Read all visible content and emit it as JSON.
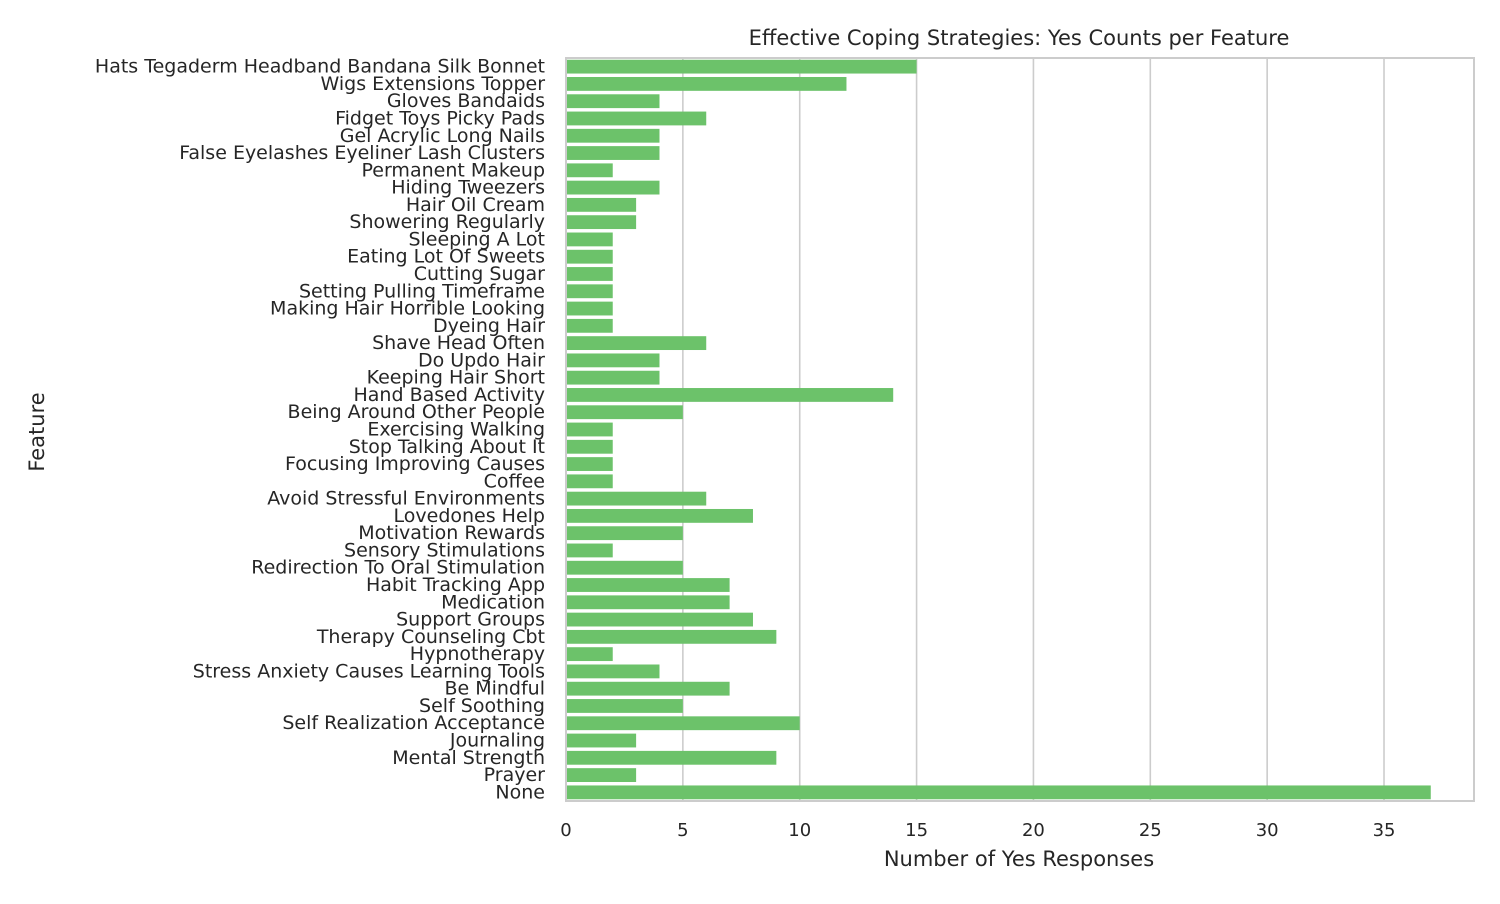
{
  "chart_data": {
    "type": "bar",
    "orientation": "horizontal",
    "title": "Effective Coping Strategies: Yes Counts per Feature",
    "xlabel": "Number of Yes Responses",
    "ylabel": "Feature",
    "xlim": [
      0,
      38.85
    ],
    "xticks": [
      0,
      5,
      10,
      15,
      20,
      25,
      30,
      35
    ],
    "grid": "x",
    "bar_color": "#6cc26a",
    "categories": [
      "Hats Tegaderm Headband Bandana Silk Bonnet",
      "Wigs Extensions Topper",
      "Gloves Bandaids",
      "Fidget Toys Picky Pads",
      "Gel Acrylic Long Nails",
      "False Eyelashes Eyeliner Lash Clusters",
      "Permanent Makeup",
      "Hiding Tweezers",
      "Hair Oil Cream",
      "Showering Regularly",
      "Sleeping A Lot",
      "Eating Lot Of Sweets",
      "Cutting Sugar",
      "Setting Pulling Timeframe",
      "Making Hair Horrible Looking",
      "Dyeing Hair",
      "Shave Head Often",
      "Do Updo Hair",
      "Keeping Hair Short",
      "Hand Based Activity",
      "Being Around Other People",
      "Exercising Walking",
      "Stop Talking About It",
      "Focusing Improving Causes",
      "Coffee",
      "Avoid Stressful Environments",
      "Lovedones Help",
      "Motivation Rewards",
      "Sensory Stimulations",
      "Redirection To Oral Stimulation",
      "Habit Tracking App",
      "Medication",
      "Support Groups",
      "Therapy Counseling Cbt",
      "Hypnotherapy",
      "Stress Anxiety Causes Learning Tools",
      "Be Mindful",
      "Self Soothing",
      "Self Realization Acceptance",
      "Journaling",
      "Mental Strength",
      "Prayer",
      "None"
    ],
    "values": [
      15,
      12,
      4,
      6,
      4,
      4,
      2,
      4,
      3,
      3,
      2,
      2,
      2,
      2,
      2,
      2,
      6,
      4,
      4,
      14,
      5,
      2,
      2,
      2,
      2,
      6,
      8,
      5,
      2,
      5,
      7,
      7,
      8,
      9,
      2,
      4,
      7,
      5,
      10,
      3,
      9,
      3,
      37
    ]
  }
}
